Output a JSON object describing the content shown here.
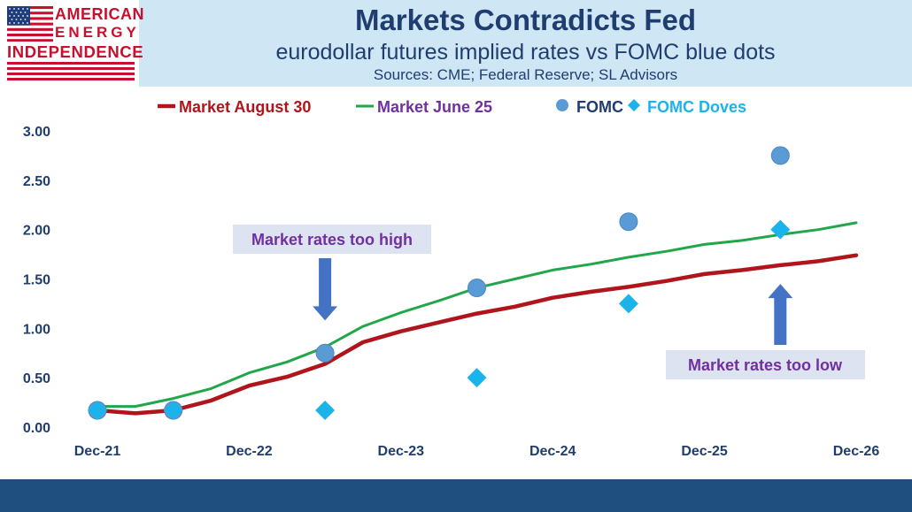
{
  "header": {
    "logo": {
      "line1": "AMERICAN",
      "line2": "ENERGY",
      "line3": "INDEPENDENCE"
    },
    "title": "Markets Contradicts Fed",
    "subtitle": "eurodollar futures implied rates vs FOMC blue dots",
    "sources": "Sources: CME; Federal Reserve; SL Advisors"
  },
  "colors": {
    "header_band": "#cfe6f5",
    "title_text": "#1f3d6e",
    "market_aug": "#b0151c",
    "market_jun": "#21a64a",
    "fomc": "#5b9bd5",
    "fomc_doves": "#1ab3ea",
    "legend_text": "#7030a0",
    "annotation_text": "#7030a0",
    "arrow": "#4472c4",
    "footer": "#1e4f7e"
  },
  "chart_data": {
    "type": "line",
    "legend_position": "top",
    "grid": false,
    "x_ticks": [
      "Dec-21",
      "Dec-22",
      "Dec-23",
      "Dec-24",
      "Dec-25",
      "Dec-26"
    ],
    "y_ticks": [
      "0.00",
      "0.50",
      "1.00",
      "1.50",
      "2.00",
      "2.50",
      "3.00"
    ],
    "ylim": [
      0,
      3
    ],
    "xlim": [
      2021.917,
      2026.917
    ],
    "series": [
      {
        "name": "Market August 30",
        "kind": "line",
        "color": "#b0151c",
        "points": [
          [
            2021.917,
            0.17
          ],
          [
            2022.167,
            0.14
          ],
          [
            2022.417,
            0.17
          ],
          [
            2022.667,
            0.27
          ],
          [
            2022.917,
            0.42
          ],
          [
            2023.167,
            0.51
          ],
          [
            2023.417,
            0.64
          ],
          [
            2023.667,
            0.86
          ],
          [
            2023.917,
            0.97
          ],
          [
            2024.167,
            1.06
          ],
          [
            2024.417,
            1.15
          ],
          [
            2024.667,
            1.22
          ],
          [
            2024.917,
            1.31
          ],
          [
            2025.167,
            1.37
          ],
          [
            2025.417,
            1.42
          ],
          [
            2025.667,
            1.48
          ],
          [
            2025.917,
            1.55
          ],
          [
            2026.167,
            1.59
          ],
          [
            2026.417,
            1.64
          ],
          [
            2026.667,
            1.68
          ],
          [
            2026.917,
            1.74
          ]
        ]
      },
      {
        "name": "Market June 25",
        "kind": "line",
        "color": "#21a64a",
        "points": [
          [
            2021.917,
            0.21
          ],
          [
            2022.167,
            0.21
          ],
          [
            2022.417,
            0.29
          ],
          [
            2022.667,
            0.39
          ],
          [
            2022.917,
            0.55
          ],
          [
            2023.167,
            0.66
          ],
          [
            2023.417,
            0.81
          ],
          [
            2023.667,
            1.02
          ],
          [
            2023.917,
            1.16
          ],
          [
            2024.167,
            1.28
          ],
          [
            2024.417,
            1.41
          ],
          [
            2024.667,
            1.5
          ],
          [
            2024.917,
            1.59
          ],
          [
            2025.167,
            1.65
          ],
          [
            2025.417,
            1.72
          ],
          [
            2025.667,
            1.78
          ],
          [
            2025.917,
            1.85
          ],
          [
            2026.167,
            1.89
          ],
          [
            2026.417,
            1.95
          ],
          [
            2026.667,
            2.0
          ],
          [
            2026.917,
            2.07
          ]
        ]
      },
      {
        "name": "FOMC",
        "kind": "scatter-circle",
        "color": "#5b9bd5",
        "points": [
          [
            2021.917,
            0.17
          ],
          [
            2022.417,
            0.17
          ],
          [
            2023.417,
            0.75
          ],
          [
            2024.417,
            1.41
          ],
          [
            2025.417,
            2.08
          ],
          [
            2026.417,
            2.75
          ]
        ]
      },
      {
        "name": "FOMC Doves",
        "kind": "scatter-diamond",
        "color": "#1ab3ea",
        "points": [
          [
            2021.917,
            0.17
          ],
          [
            2022.417,
            0.17
          ],
          [
            2023.417,
            0.17
          ],
          [
            2024.417,
            0.5
          ],
          [
            2025.417,
            1.25
          ],
          [
            2026.417,
            2.0
          ]
        ]
      }
    ],
    "annotations": [
      {
        "text": "Market rates too high",
        "arrow": "down",
        "target": [
          2023.417,
          1.08
        ]
      },
      {
        "text": "Market rates too low",
        "arrow": "up",
        "target": [
          2026.417,
          1.45
        ]
      }
    ]
  }
}
